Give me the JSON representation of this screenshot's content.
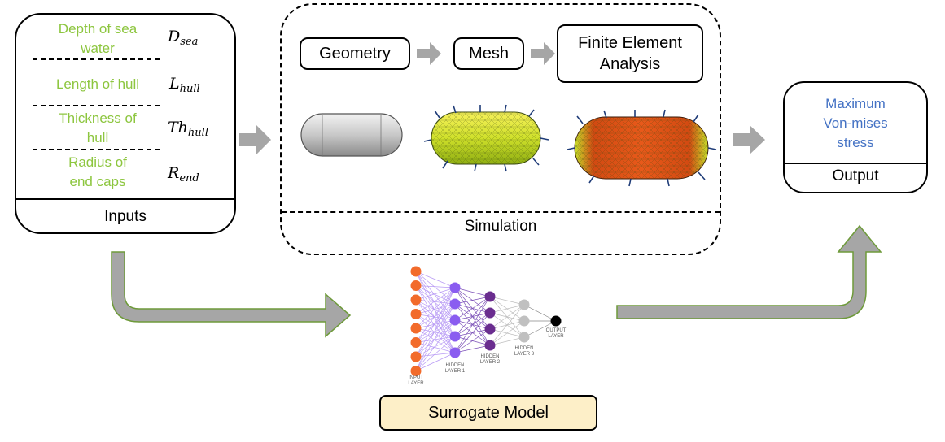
{
  "inputs": {
    "title": "Inputs",
    "items": [
      {
        "label": "Depth of sea water",
        "lines": [
          "Depth of sea",
          "water"
        ],
        "symbol": "D",
        "sub": "sea"
      },
      {
        "label": "Length of hull",
        "lines": [
          "Length of hull"
        ],
        "symbol": "L",
        "sub": "hull"
      },
      {
        "label": "Thickness of hull",
        "lines": [
          "Thickness of",
          "hull"
        ],
        "symbol": "Th",
        "sub": "hull"
      },
      {
        "label": "Radius of end caps",
        "lines": [
          "Radius of",
          "end caps"
        ],
        "symbol": "R",
        "sub": "end"
      }
    ]
  },
  "simulation": {
    "title": "Simulation",
    "steps": [
      "Geometry",
      "Mesh",
      "Finite Element Analysis"
    ],
    "step3_lines": [
      "Finite Element",
      "Analysis"
    ]
  },
  "output": {
    "title": "Output",
    "value_lines": [
      "Maximum",
      "Von-mises",
      "stress"
    ]
  },
  "surrogate": {
    "title": "Surrogate Model",
    "layer_labels": {
      "input": [
        "INPUT",
        "LAYER"
      ],
      "hidden1": [
        "HIDDEN",
        "LAYER 1"
      ],
      "hidden2": [
        "HIDDEN",
        "LAYER 2"
      ],
      "hidden3": [
        "HIDDEN",
        "LAYER 3"
      ],
      "output": [
        "OUTPUT",
        "LAYER"
      ]
    }
  },
  "colors": {
    "green_text": "#8dc63f",
    "blue_text": "#4472c4",
    "arrow_fill": "#a6a6a6",
    "arrow_outline": "#6e9a3a",
    "surrogate_fill": "#fdefc8",
    "nn_input": "#f26b2b",
    "nn_h1": "#8a5cf0",
    "nn_h2": "#6a2d8f",
    "nn_h3": "#c0c0c0",
    "nn_out": "#000000"
  }
}
